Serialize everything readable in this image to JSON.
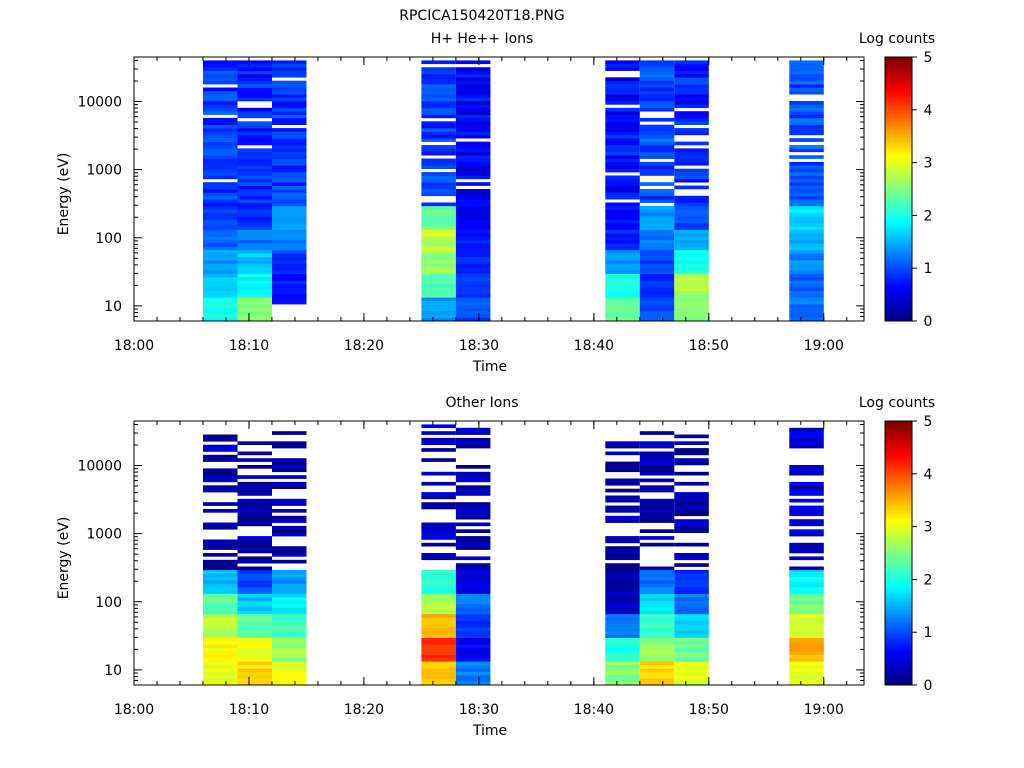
{
  "figure_title": "RPCICA150420T18.PNG",
  "chart_data": [
    {
      "type": "heatmap",
      "title": "H+ He++ Ions",
      "xlabel": "Time",
      "ylabel": "Energy (eV)",
      "y_scale": "log",
      "ylim": [
        6,
        45000
      ],
      "x_ticks": [
        "18:00",
        "18:10",
        "18:20",
        "18:30",
        "18:40",
        "18:50",
        "19:00"
      ],
      "y_ticks": [
        "10",
        "100",
        "1000",
        "10000"
      ],
      "colorbar": {
        "label": "Log counts",
        "range": [
          0,
          5
        ],
        "ticks": [
          "0",
          "1",
          "2",
          "3",
          "4",
          "5"
        ]
      },
      "time_bins": [
        {
          "start": "18:06",
          "end": "18:09",
          "ymax": 40000,
          "low": [
            2,
            1.6,
            1.4,
            1.1,
            0.9
          ],
          "high": 0.9
        },
        {
          "start": "18:09",
          "end": "18:12",
          "ymax": 40000,
          "low": [
            2.5,
            1.9,
            1.6,
            1.2,
            0.8
          ],
          "high": 0.8
        },
        {
          "start": "18:12",
          "end": "18:15",
          "ymin": 11,
          "ymax": 40000,
          "low": [
            0.8,
            0.7,
            0.9,
            1.2,
            1.4
          ],
          "high": 0.9
        },
        {
          "start": "18:25",
          "end": "18:28",
          "ymax": 40000,
          "low": [
            1.4,
            2.2,
            2.6,
            2.8,
            2.4
          ],
          "high": 0.9
        },
        {
          "start": "18:28",
          "end": "18:31",
          "ymax": 40000,
          "low": [
            1,
            0.9,
            0.8,
            0.7,
            0.6
          ],
          "high": 0.6
        },
        {
          "start": "18:41",
          "end": "18:44",
          "ymax": 40000,
          "low": [
            2.4,
            2,
            1.3,
            0.8,
            0.7
          ],
          "high": 0.7
        },
        {
          "start": "18:44",
          "end": "18:47",
          "ymax": 40000,
          "low": [
            1,
            0.8,
            0.9,
            1.2,
            1.4
          ],
          "high": 1
        },
        {
          "start": "18:47",
          "end": "18:50",
          "ymax": 40000,
          "low": [
            2.5,
            2.7,
            2,
            1.5,
            1
          ],
          "high": 0.8
        },
        {
          "start": "18:57",
          "end": "19:00",
          "ymax": 40000,
          "low": [
            1.2,
            1.1,
            1.3,
            1.5,
            1.7
          ],
          "high": 1
        }
      ]
    },
    {
      "type": "heatmap",
      "title": "Other Ions",
      "xlabel": "Time",
      "ylabel": "Energy (eV)",
      "y_scale": "log",
      "ylim": [
        6,
        45000
      ],
      "x_ticks": [
        "18:00",
        "18:10",
        "18:20",
        "18:30",
        "18:40",
        "18:50",
        "19:00"
      ],
      "y_ticks": [
        "10",
        "100",
        "1000",
        "10000"
      ],
      "colorbar": {
        "label": "Log counts",
        "range": [
          0,
          5
        ],
        "ticks": [
          "0",
          "1",
          "2",
          "3",
          "4",
          "5"
        ]
      },
      "time_bins": [
        {
          "start": "18:06",
          "end": "18:09",
          "ymax": 28000,
          "low": [
            3,
            3.2,
            2.8,
            2.3,
            1.5
          ],
          "high": 0.2
        },
        {
          "start": "18:09",
          "end": "18:12",
          "ymax": 25000,
          "low": [
            3.3,
            3,
            2.3,
            1.6,
            1
          ],
          "high": 0.2
        },
        {
          "start": "18:12",
          "end": "18:15",
          "ymax": 40000,
          "low": [
            3,
            2.6,
            2.2,
            1.8,
            1.4
          ],
          "high": 0.2
        },
        {
          "start": "18:25",
          "end": "18:28",
          "ymax": 40000,
          "low": [
            3.4,
            4.2,
            3.5,
            2.7,
            2.1
          ],
          "high": 0.3
        },
        {
          "start": "18:28",
          "end": "18:31",
          "ymax": 37000,
          "low": [
            1.2,
            0.6,
            0.9,
            1.2,
            0.5
          ],
          "high": 0.2
        },
        {
          "start": "18:41",
          "end": "18:44",
          "ymax": 25000,
          "low": [
            2.5,
            2,
            1.2,
            0.3,
            0.2
          ],
          "high": 0.2
        },
        {
          "start": "18:44",
          "end": "18:47",
          "ymax": 35000,
          "low": [
            3.3,
            2.6,
            2.2,
            1.7,
            1.2
          ],
          "high": 0.2
        },
        {
          "start": "18:47",
          "end": "18:50",
          "ymax": 27000,
          "low": [
            3,
            2.4,
            1.7,
            1.2,
            0.8
          ],
          "high": 0.2
        },
        {
          "start": "18:57",
          "end": "19:00",
          "ymax": 40000,
          "low": [
            3,
            3.5,
            3,
            2.4,
            1.9
          ],
          "high": 0.4
        }
      ]
    }
  ]
}
